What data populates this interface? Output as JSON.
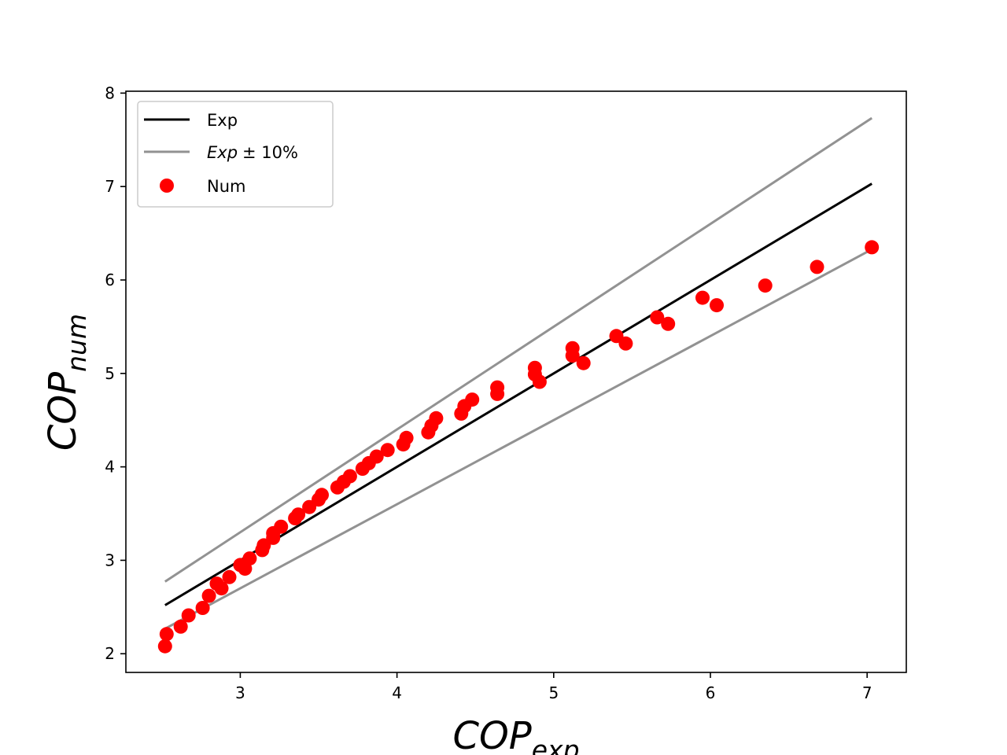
{
  "chart_data": {
    "type": "scatter",
    "xlabel": {
      "base": "COP",
      "sub": "exp"
    },
    "ylabel": {
      "base": "COP",
      "sub": "num"
    },
    "xlim": [
      2.27,
      7.25
    ],
    "ylim": [
      1.8,
      8.02
    ],
    "x_ticks": [
      3,
      4,
      5,
      6,
      7
    ],
    "y_ticks": [
      2,
      3,
      4,
      5,
      6,
      7,
      8
    ],
    "grid": false,
    "legend": {
      "placement": "upper-left",
      "entries": [
        {
          "label": "Exp",
          "kind": "line",
          "color": "#000000"
        },
        {
          "label": "Exp ± 10%",
          "label_var": "Exp",
          "label_rest": "± 10%",
          "kind": "line",
          "color": "#929292"
        },
        {
          "label": "Num",
          "kind": "marker",
          "color": "#ff0000"
        }
      ]
    },
    "series": [
      {
        "name": "Exp",
        "kind": "line",
        "color": "#000000",
        "x": [
          2.52,
          7.03
        ],
        "y": [
          2.52,
          7.03
        ]
      },
      {
        "name": "Exp+10%",
        "kind": "line",
        "color": "#929292",
        "x": [
          2.52,
          7.03
        ],
        "y": [
          2.772,
          7.733
        ]
      },
      {
        "name": "Exp-10%",
        "kind": "line",
        "color": "#929292",
        "x": [
          2.52,
          7.03
        ],
        "y": [
          2.268,
          6.327
        ]
      },
      {
        "name": "Num",
        "kind": "scatter",
        "color": "#ff0000",
        "points": [
          [
            2.52,
            2.08
          ],
          [
            2.53,
            2.21
          ],
          [
            2.62,
            2.29
          ],
          [
            2.67,
            2.41
          ],
          [
            2.76,
            2.49
          ],
          [
            2.8,
            2.62
          ],
          [
            2.85,
            2.75
          ],
          [
            2.88,
            2.7
          ],
          [
            2.93,
            2.82
          ],
          [
            3.0,
            2.95
          ],
          [
            3.03,
            2.91
          ],
          [
            3.06,
            3.02
          ],
          [
            3.14,
            3.11
          ],
          [
            3.15,
            3.16
          ],
          [
            3.21,
            3.24
          ],
          [
            3.21,
            3.29
          ],
          [
            3.26,
            3.36
          ],
          [
            3.35,
            3.45
          ],
          [
            3.37,
            3.49
          ],
          [
            3.44,
            3.57
          ],
          [
            3.5,
            3.65
          ],
          [
            3.52,
            3.7
          ],
          [
            3.62,
            3.78
          ],
          [
            3.66,
            3.84
          ],
          [
            3.7,
            3.9
          ],
          [
            3.78,
            3.98
          ],
          [
            3.82,
            4.04
          ],
          [
            3.87,
            4.11
          ],
          [
            3.94,
            4.18
          ],
          [
            4.04,
            4.24
          ],
          [
            4.06,
            4.31
          ],
          [
            4.2,
            4.37
          ],
          [
            4.22,
            4.44
          ],
          [
            4.25,
            4.52
          ],
          [
            4.41,
            4.57
          ],
          [
            4.43,
            4.65
          ],
          [
            4.48,
            4.72
          ],
          [
            4.64,
            4.78
          ],
          [
            4.64,
            4.85
          ],
          [
            4.88,
            4.99
          ],
          [
            4.88,
            5.06
          ],
          [
            4.91,
            4.91
          ],
          [
            5.12,
            5.19
          ],
          [
            5.12,
            5.27
          ],
          [
            5.19,
            5.11
          ],
          [
            5.4,
            5.4
          ],
          [
            5.46,
            5.32
          ],
          [
            5.66,
            5.6
          ],
          [
            5.73,
            5.53
          ],
          [
            5.95,
            5.81
          ],
          [
            6.04,
            5.73
          ],
          [
            6.35,
            5.94
          ],
          [
            6.68,
            6.14
          ],
          [
            7.03,
            6.35
          ]
        ]
      }
    ]
  }
}
